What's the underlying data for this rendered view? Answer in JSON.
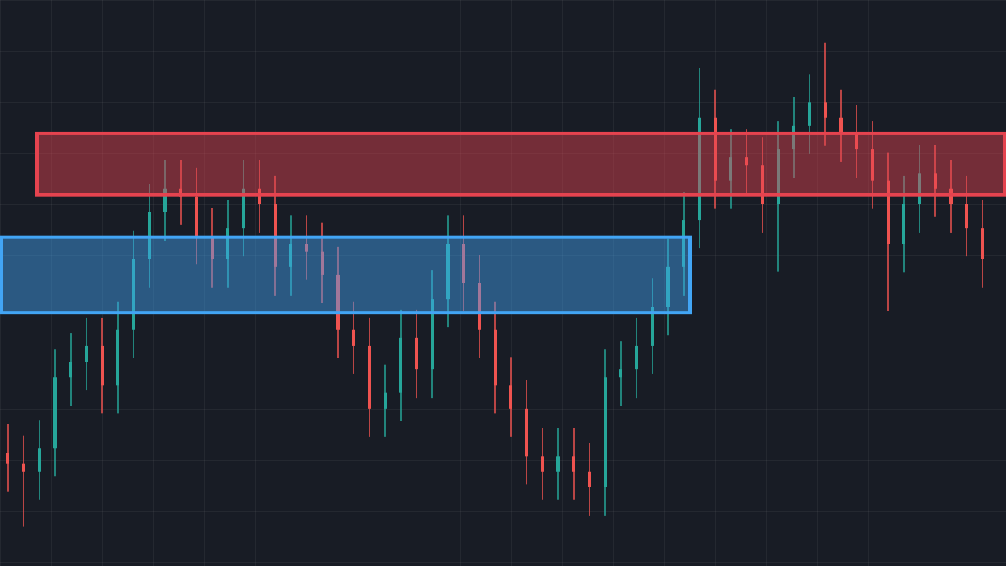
{
  "chart_data": {
    "type": "candlestick",
    "up_color": "#26a69a",
    "down_color": "#ef5350",
    "xlim": [
      -0.5,
      63.5
    ],
    "ylim": [
      0,
      100
    ],
    "open": [
      20.0,
      18.1,
      16.7,
      20.8,
      33.3,
      36.1,
      38.9,
      31.9,
      41.7,
      54.2,
      62.5,
      66.7,
      65.3,
      58.3,
      54.2,
      59.7,
      66.7,
      63.9,
      52.8,
      56.9,
      55.6,
      51.4,
      41.7,
      38.9,
      27.8,
      30.6,
      40.3,
      34.7,
      47.2,
      56.9,
      50.0,
      41.7,
      31.9,
      27.8,
      19.4,
      16.7,
      19.4,
      16.7,
      13.9,
      33.3,
      34.7,
      38.9,
      45.8,
      52.8,
      61.1,
      79.2,
      68.1,
      72.2,
      70.8,
      63.9,
      73.6,
      77.8,
      81.9,
      79.2,
      76.4,
      73.6,
      68.1,
      56.9,
      63.9,
      69.4,
      66.7,
      63.9,
      59.7
    ],
    "high": [
      25.0,
      23.1,
      25.8,
      38.3,
      41.1,
      43.9,
      43.9,
      46.7,
      59.2,
      67.5,
      71.7,
      71.7,
      70.3,
      63.3,
      64.7,
      71.7,
      71.7,
      68.9,
      61.9,
      61.9,
      60.6,
      56.4,
      46.7,
      43.9,
      35.6,
      45.3,
      45.3,
      52.2,
      61.9,
      61.9,
      55.0,
      46.7,
      36.9,
      32.8,
      24.4,
      24.4,
      24.4,
      21.7,
      38.3,
      39.7,
      43.9,
      50.8,
      57.8,
      66.1,
      88.0,
      84.2,
      77.2,
      77.2,
      75.8,
      78.6,
      82.8,
      86.9,
      92.4,
      84.2,
      81.4,
      78.6,
      73.1,
      68.9,
      74.4,
      74.4,
      71.7,
      68.9,
      64.7
    ],
    "low": [
      13.1,
      7.0,
      11.7,
      15.8,
      28.3,
      31.1,
      26.9,
      26.9,
      36.7,
      49.2,
      57.5,
      60.3,
      53.3,
      49.2,
      49.2,
      54.7,
      58.9,
      47.8,
      47.8,
      50.6,
      46.4,
      36.7,
      33.9,
      22.8,
      22.8,
      25.6,
      29.7,
      29.7,
      42.2,
      45.0,
      36.7,
      26.9,
      22.8,
      14.4,
      11.7,
      11.7,
      11.7,
      8.9,
      8.9,
      28.3,
      29.7,
      33.9,
      40.8,
      47.8,
      56.1,
      63.1,
      63.1,
      65.8,
      58.9,
      52.0,
      68.6,
      72.8,
      74.2,
      71.4,
      68.6,
      63.1,
      45.0,
      51.9,
      58.9,
      61.7,
      58.9,
      54.7,
      49.2
    ],
    "close": [
      18.1,
      16.7,
      20.8,
      33.3,
      36.1,
      38.9,
      31.9,
      41.7,
      54.2,
      62.5,
      66.7,
      65.3,
      58.3,
      54.2,
      59.7,
      66.7,
      63.9,
      52.8,
      56.9,
      55.6,
      51.4,
      41.7,
      38.9,
      27.8,
      30.6,
      40.3,
      34.7,
      47.2,
      56.9,
      50.0,
      41.7,
      31.9,
      27.8,
      19.4,
      16.7,
      19.4,
      16.7,
      13.9,
      33.3,
      34.7,
      38.9,
      45.8,
      52.8,
      61.1,
      79.2,
      68.1,
      72.2,
      70.8,
      63.9,
      73.6,
      77.8,
      81.9,
      79.2,
      76.4,
      73.6,
      68.1,
      56.9,
      63.9,
      69.4,
      66.7,
      63.9,
      59.7,
      54.2
    ],
    "zones": [
      {
        "low": 65.6,
        "high": 76.4,
        "from": 1.75,
        "to": 63.5,
        "color": "#e5434f"
      },
      {
        "low": 44.7,
        "high": 58.1,
        "from": -0.5,
        "to": 43.5,
        "color": "#42a5f5"
      }
    ]
  }
}
